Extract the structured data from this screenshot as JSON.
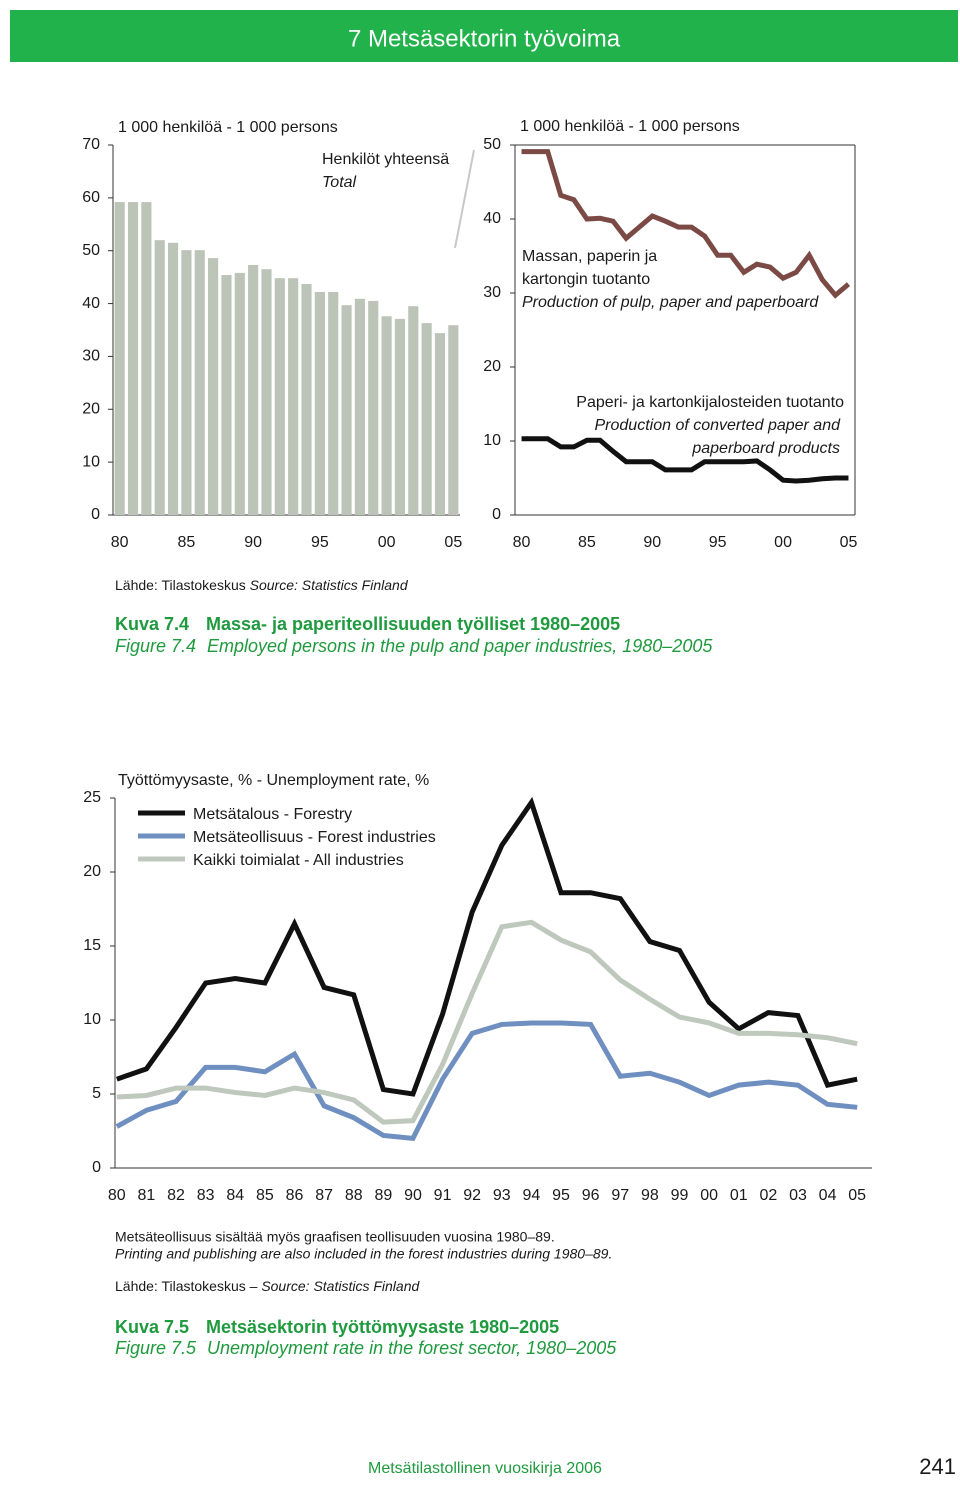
{
  "header": {
    "title": "7 Metsäsektorin työvoima"
  },
  "chart_data": [
    {
      "type": "bar",
      "unit_label": "1 000 henkilöä - 1 000 persons",
      "label": "Henkilöt yhteensä",
      "label_en": "Total",
      "categories": [
        "80",
        null,
        null,
        null,
        null,
        "85",
        null,
        null,
        null,
        null,
        "90",
        null,
        null,
        null,
        null,
        "95",
        null,
        null,
        null,
        null,
        "00",
        null,
        null,
        null,
        null,
        "05"
      ],
      "values": [
        59.2,
        59.2,
        59.2,
        52,
        51.5,
        50.1,
        50.1,
        48.6,
        45.4,
        45.8,
        47.3,
        46.5,
        44.8,
        44.8,
        43.7,
        42.2,
        42.2,
        39.7,
        40.9,
        40.5,
        37.6,
        37.1,
        39.5,
        36.3,
        34.4,
        35.9
      ],
      "color": "#bcc3b7",
      "ylim": [
        0,
        70
      ],
      "yticks": [
        0,
        10,
        20,
        30,
        40,
        50,
        60,
        70
      ]
    },
    {
      "type": "line",
      "unit_label": "1 000 henkilöä - 1 000 persons",
      "categories": [
        "80",
        null,
        null,
        null,
        null,
        "85",
        null,
        null,
        null,
        null,
        "90",
        null,
        null,
        null,
        null,
        "95",
        null,
        null,
        null,
        null,
        "00",
        null,
        null,
        null,
        null,
        "05"
      ],
      "series": [
        {
          "label_lines": [
            "Massan, paperin ja",
            "kartongin tuotanto"
          ],
          "label_en": [
            "Production of pulp, paper and paperboard"
          ],
          "color": "#7b4a45",
          "values": [
            49.1,
            49.1,
            49.1,
            43.2,
            42.6,
            40,
            40.1,
            39.7,
            37.4,
            38.9,
            40.4,
            39.7,
            38.9,
            38.9,
            37.7,
            35.1,
            35.1,
            32.8,
            33.9,
            33.5,
            32,
            32.8,
            35.1,
            31.8,
            29.7,
            31.2
          ]
        },
        {
          "label_lines": [
            "Paperi- ja kartonkijalosteiden tuotanto"
          ],
          "label_en": [
            "Production of converted paper and",
            "paperboard products"
          ],
          "color": "#111111",
          "values": [
            10.3,
            10.3,
            10.3,
            9.2,
            9.2,
            10.1,
            10.1,
            8.6,
            7.2,
            7.2,
            7.2,
            6.1,
            6.1,
            6.1,
            7.2,
            7.2,
            7.2,
            7.2,
            7.3,
            6.1,
            4.7,
            4.6,
            4.7,
            4.9,
            5.0,
            5.0
          ]
        }
      ],
      "ylim": [
        0,
        50
      ],
      "yticks": [
        0,
        10,
        20,
        30,
        40,
        50
      ]
    },
    {
      "type": "line",
      "title": "Työttömyysaste, % - Unemployment rate, %",
      "legend": "upper left",
      "categories": [
        "80",
        "81",
        "82",
        "83",
        "84",
        "85",
        "86",
        "87",
        "88",
        "89",
        "90",
        "91",
        "92",
        "93",
        "94",
        "95",
        "96",
        "97",
        "98",
        "99",
        "00",
        "01",
        "02",
        "03",
        "04",
        "05"
      ],
      "series": [
        {
          "name": "Metsätalous - Forestry",
          "color": "#111111",
          "values": [
            6.0,
            6.7,
            9.5,
            12.5,
            12.8,
            12.5,
            16.5,
            12.2,
            11.7,
            5.3,
            5.0,
            10.4,
            17.3,
            21.8,
            24.7,
            18.6,
            18.6,
            18.2,
            15.3,
            14.7,
            11.2,
            9.4,
            10.5,
            10.3,
            5.6,
            6.0
          ]
        },
        {
          "name": "Metsäteollisuus - Forest industries",
          "color": "#6f8fc0",
          "values": [
            2.8,
            3.9,
            4.5,
            6.8,
            6.8,
            6.5,
            7.7,
            4.2,
            3.4,
            2.2,
            2.0,
            6.0,
            9.1,
            9.7,
            9.8,
            9.8,
            9.7,
            6.2,
            6.4,
            5.8,
            4.9,
            5.6,
            5.8,
            5.6,
            4.3,
            4.1
          ]
        },
        {
          "name": "Kaikki toimialat - All industries",
          "color": "#bfc8bc",
          "values": [
            4.8,
            4.9,
            5.4,
            5.4,
            5.1,
            4.9,
            5.4,
            5.1,
            4.6,
            3.1,
            3.2,
            7.0,
            11.8,
            16.3,
            16.6,
            15.4,
            14.6,
            12.7,
            11.4,
            10.2,
            9.8,
            9.1,
            9.1,
            9.0,
            8.8,
            8.4
          ]
        }
      ],
      "ylim": [
        0,
        25
      ],
      "yticks": [
        0,
        5,
        10,
        15,
        20,
        25
      ]
    }
  ],
  "figure1": {
    "source": "Lähde: Tilastokeskus",
    "source_en": "Source: Statistics Finland",
    "label": "Kuva 7.4",
    "title": "Massa- ja paperiteollisuuden työlliset 1980–2005",
    "label_en": "Figure 7.4",
    "title_en": "Employed persons in the pulp and paper industries, 1980–2005"
  },
  "figure2": {
    "note": "Metsäteollisuus sisältää myös graafisen teollisuuden vuosina 1980–89.",
    "note_en": "Printing and publishing are also included in the forest industries during 1980–89.",
    "source": "Lähde: Tilastokeskus –",
    "source_en": "Source: Statistics Finland",
    "label": "Kuva 7.5",
    "title": "Metsäsektorin työttömyysaste 1980–2005",
    "label_en": "Figure 7.5",
    "title_en": "Unemployment rate in the forest sector, 1980–2005"
  },
  "footer": {
    "text": "Metsätilastollinen vuosikirja 2006",
    "page": "241"
  }
}
